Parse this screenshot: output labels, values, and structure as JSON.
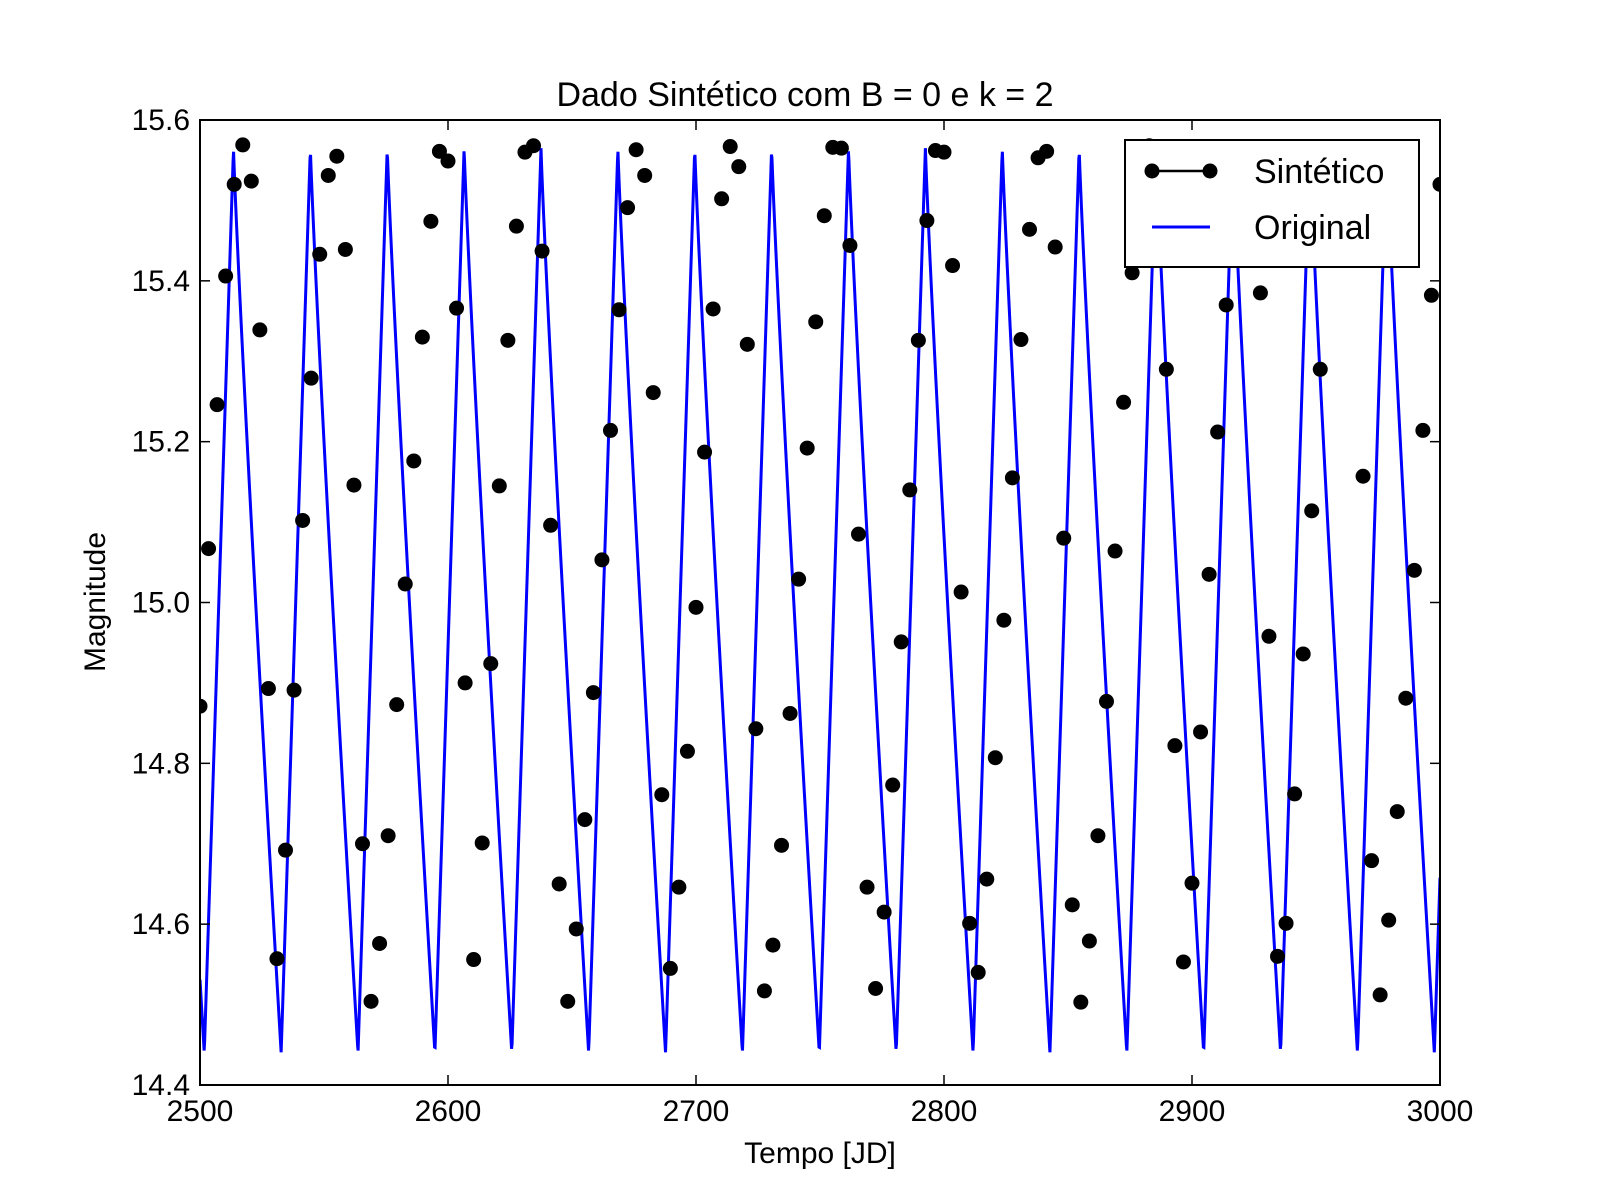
{
  "chart_data": {
    "type": "line",
    "title": "Dado Sintético com B = 0 e k = 2",
    "xlabel": "Tempo [JD]",
    "ylabel": "Magnitude",
    "xlim": [
      2500,
      3000
    ],
    "ylim": [
      14.4,
      15.6
    ],
    "xticks": [
      2500,
      2600,
      2700,
      2800,
      2900,
      3000
    ],
    "xtick_labels": [
      "2500",
      "2600",
      "2700",
      "2800",
      "2900",
      "3000"
    ],
    "yticks": [
      14.4,
      14.6,
      14.8,
      15.0,
      15.2,
      15.4,
      15.6
    ],
    "ytick_labels": [
      "14.4",
      "14.6",
      "14.8",
      "15.0",
      "15.2",
      "15.4",
      "15.6"
    ],
    "grid": false,
    "legend_position": "top-right",
    "series": [
      {
        "name": "Sintético",
        "kind": "markers",
        "color": "#000000",
        "x": [
          2500,
          2503.45,
          2506.9,
          2510.34,
          2513.79,
          2517.24,
          2520.69,
          2524.14,
          2527.59,
          2531.03,
          2534.48,
          2537.93,
          2541.38,
          2544.83,
          2548.28,
          2551.72,
          2555.17,
          2558.62,
          2562.07,
          2565.52,
          2568.97,
          2572.41,
          2575.86,
          2579.31,
          2582.76,
          2586.21,
          2589.66,
          2593.1,
          2596.55,
          2600,
          2603.45,
          2606.9,
          2610.34,
          2613.79,
          2617.24,
          2620.69,
          2624.14,
          2627.59,
          2631.03,
          2634.48,
          2637.93,
          2641.38,
          2644.83,
          2648.28,
          2651.72,
          2655.17,
          2658.62,
          2662.07,
          2665.52,
          2668.97,
          2672.41,
          2675.86,
          2679.31,
          2682.76,
          2686.21,
          2689.66,
          2693.1,
          2696.55,
          2700,
          2703.45,
          2706.9,
          2710.34,
          2713.79,
          2717.24,
          2720.69,
          2724.14,
          2727.59,
          2731.03,
          2734.48,
          2737.93,
          2741.38,
          2744.83,
          2748.28,
          2751.72,
          2755.17,
          2758.62,
          2762.07,
          2765.52,
          2768.97,
          2772.41,
          2775.86,
          2779.31,
          2782.76,
          2786.21,
          2789.66,
          2793.1,
          2796.55,
          2800,
          2803.45,
          2806.9,
          2810.34,
          2813.79,
          2817.24,
          2820.69,
          2824.14,
          2827.59,
          2831.03,
          2834.48,
          2837.93,
          2841.38,
          2844.83,
          2848.28,
          2851.72,
          2855.17,
          2858.62,
          2862.07,
          2865.52,
          2868.97,
          2872.41,
          2875.86,
          2879.31,
          2882.76,
          2886.21,
          2889.66,
          2893.1,
          2896.55,
          2900,
          2903.45,
          2906.9,
          2910.34,
          2913.79,
          2917.24,
          2920.69,
          2924.14,
          2927.59,
          2931.03,
          2934.48,
          2937.93,
          2941.38,
          2944.83,
          2948.28,
          2951.72,
          2955.17,
          2958.62,
          2962.07,
          2965.52,
          2968.97,
          2972.41,
          2975.86,
          2979.31,
          2982.76,
          2986.21,
          2989.66,
          2993.1,
          2996.55,
          3000
        ],
        "y": [
          14.871,
          15.067,
          15.246,
          15.406,
          15.52,
          15.569,
          15.524,
          15.339,
          14.893,
          14.557,
          14.692,
          14.891,
          15.102,
          15.279,
          15.433,
          15.531,
          15.555,
          15.439,
          15.146,
          14.7,
          14.504,
          14.576,
          14.71,
          14.873,
          15.023,
          15.176,
          15.33,
          15.474,
          15.561,
          15.549,
          15.366,
          14.9,
          14.556,
          14.701,
          14.924,
          15.145,
          15.326,
          15.468,
          15.56,
          15.568,
          15.437,
          15.096,
          14.65,
          14.504,
          14.594,
          14.73,
          14.888,
          15.053,
          15.214,
          15.364,
          15.491,
          15.563,
          15.531,
          15.261,
          14.761,
          14.545,
          14.646,
          14.815,
          14.994,
          15.187,
          15.365,
          15.502,
          15.567,
          15.542,
          15.321,
          14.843,
          14.517,
          14.574,
          14.698,
          14.862,
          15.029,
          15.192,
          15.349,
          15.481,
          15.566,
          15.565,
          15.444,
          15.085,
          14.646,
          14.52,
          14.615,
          14.773,
          14.951,
          15.14,
          15.326,
          15.475,
          15.562,
          15.56,
          15.419,
          15.013,
          14.601,
          14.54,
          14.656,
          14.807,
          14.978,
          15.155,
          15.327,
          15.464,
          15.553,
          15.561,
          15.442,
          15.08,
          14.624,
          14.503,
          14.579,
          14.71,
          14.877,
          15.064,
          15.249,
          15.41,
          15.52,
          15.568,
          15.514,
          15.29,
          14.822,
          14.553,
          14.651,
          14.839,
          15.035,
          15.212,
          15.37,
          15.49,
          15.563,
          15.548,
          15.385,
          14.958,
          14.56,
          14.601,
          14.762,
          14.936,
          15.114,
          15.29,
          15.443,
          15.55,
          15.567,
          15.467,
          15.157,
          14.679,
          14.512,
          14.605,
          14.74,
          14.881,
          15.04,
          15.214,
          15.382,
          15.52
        ]
      },
      {
        "name": "Original",
        "kind": "line",
        "color": "#0000ff",
        "period": 31.0,
        "phase0_jd": 2513.5,
        "min": 14.44,
        "max": 15.565
      }
    ]
  }
}
